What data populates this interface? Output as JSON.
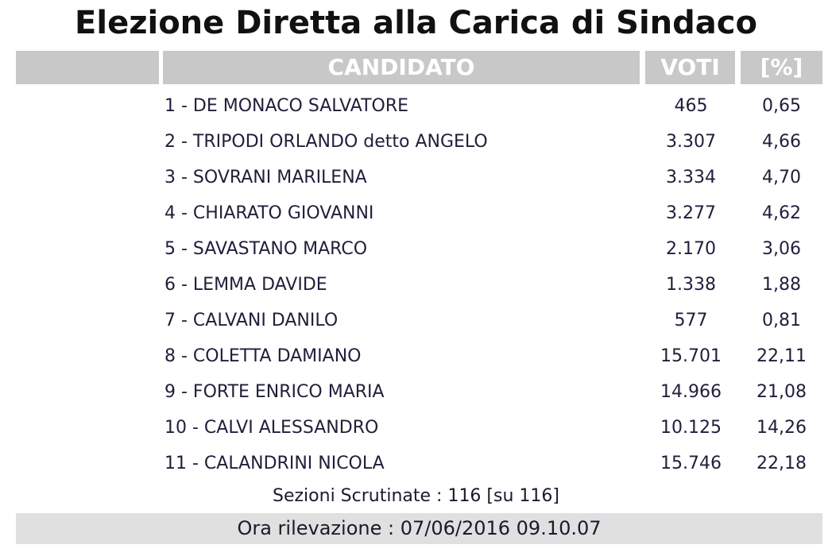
{
  "title": "Elezione Diretta alla Carica di Sindaco",
  "table": {
    "header": [
      "CANDIDATO",
      "VOTI",
      "[%]"
    ],
    "rows": [
      [
        "1 - DE MONACO SALVATORE",
        "465",
        "0,65"
      ],
      [
        "2 - TRIPODI ORLANDO detto ANGELO",
        "3.307",
        "4,66"
      ],
      [
        "3 - SOVRANI MARILENA",
        "3.334",
        "4,70"
      ],
      [
        "4 - CHIARATO GIOVANNI",
        "3.277",
        "4,62"
      ],
      [
        "5 - SAVASTANO MARCO",
        "2.170",
        "3,06"
      ],
      [
        "6 - LEMMA DAVIDE",
        "1.338",
        "1,88"
      ],
      [
        "7 - CALVANI DANILO",
        "577",
        "0,81"
      ],
      [
        "8 - COLETTA DAMIANO",
        "15.701",
        "22,11"
      ],
      [
        "9 - FORTE ENRICO MARIA",
        "14.966",
        "21,08"
      ],
      [
        "10 - CALVI ALESSANDRO",
        "10.125",
        "14,26"
      ],
      [
        "11 - CALANDRINI NICOLA",
        "15.746",
        "22,18"
      ]
    ]
  },
  "footer": {
    "sections": "Sezioni Scrutinate : 116 [su 116]",
    "time": "Ora rilevazione : 07/06/2016 09.10.07"
  }
}
